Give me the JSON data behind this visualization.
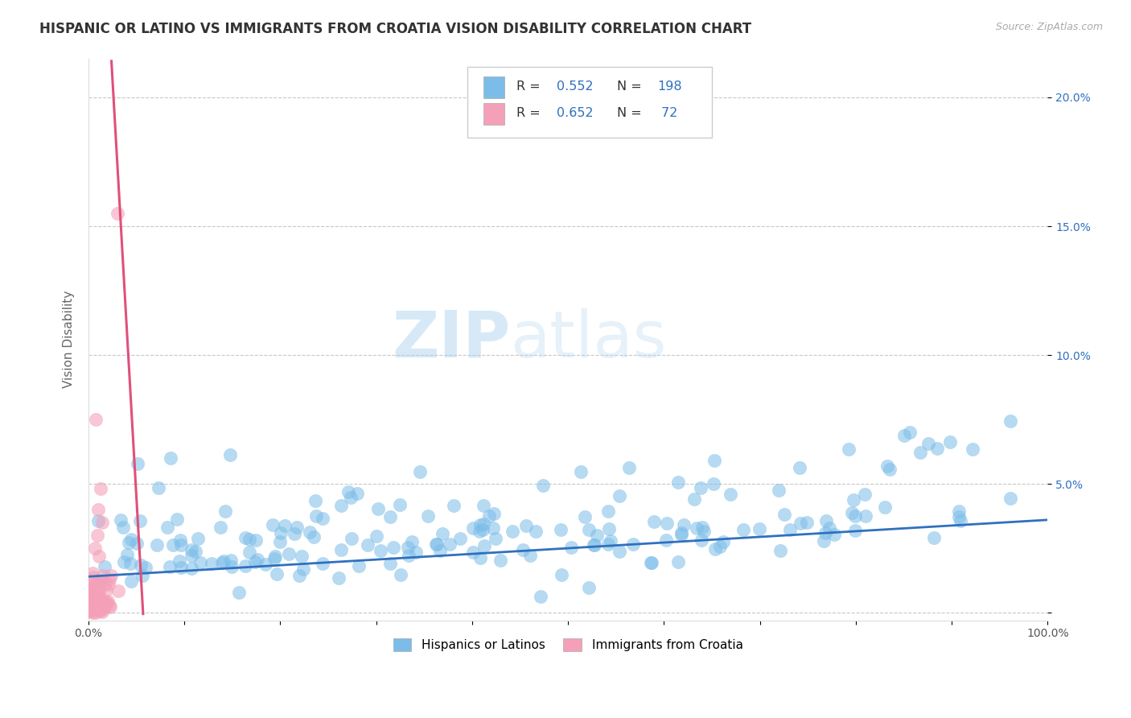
{
  "title": "HISPANIC OR LATINO VS IMMIGRANTS FROM CROATIA VISION DISABILITY CORRELATION CHART",
  "source": "Source: ZipAtlas.com",
  "ylabel": "Vision Disability",
  "xlim": [
    0.0,
    1.0
  ],
  "ylim": [
    -0.003,
    0.215
  ],
  "xticks": [
    0.0,
    0.1,
    0.2,
    0.3,
    0.4,
    0.5,
    0.6,
    0.7,
    0.8,
    0.9,
    1.0
  ],
  "xticklabels": [
    "0.0%",
    "",
    "",
    "",
    "",
    "",
    "",
    "",
    "",
    "",
    "100.0%"
  ],
  "yticks": [
    0.0,
    0.05,
    0.1,
    0.15,
    0.2
  ],
  "yticklabels": [
    "",
    "5.0%",
    "10.0%",
    "15.0%",
    "20.0%"
  ],
  "blue_color": "#7bbde8",
  "pink_color": "#f4a0b8",
  "blue_line_color": "#3070c0",
  "pink_line_color": "#e0507a",
  "pink_line_dashed_color": "#f0a0b8",
  "N_blue": 198,
  "N_pink": 72,
  "legend1_label": "Hispanics or Latinos",
  "legend2_label": "Immigrants from Croatia",
  "watermark_zip": "ZIP",
  "watermark_atlas": "atlas",
  "grid_color": "#c8c8c8",
  "background_color": "#ffffff",
  "title_fontsize": 12,
  "axis_fontsize": 11,
  "tick_fontsize": 10,
  "blue_slope": 0.022,
  "blue_intercept": 0.014,
  "pink_slope": 3.5,
  "pink_intercept": -0.005
}
